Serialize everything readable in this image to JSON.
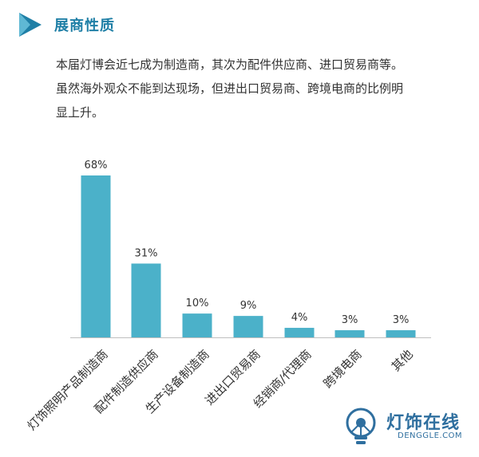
{
  "section": {
    "title": "展商性质",
    "intro_line1": "本届灯博会近七成为制造商，其次为配件供应商、进口贸易商等。",
    "intro_line2": "虽然海外观众不能到达现场，但进出口贸易商、跨境电商的比例明",
    "intro_line3": "显上升。"
  },
  "chart_data": {
    "type": "bar",
    "title": "",
    "xlabel": "",
    "ylabel": "",
    "ylim": [
      0,
      100
    ],
    "categories": [
      "灯饰照明产品制造商",
      "配件制造供应商",
      "生产设备制造商",
      "进出口贸易商",
      "经销商/代理商",
      "跨境电商",
      "其他"
    ],
    "values": [
      68,
      31,
      10,
      9,
      4,
      3,
      3
    ],
    "value_labels": [
      "68%",
      "31%",
      "10%",
      "9%",
      "4%",
      "3%",
      "3%"
    ],
    "bar_color": "#4bb1c9"
  },
  "logo": {
    "name_cn": "灯饰在线",
    "name_en": "DENGGLE.COM"
  },
  "colors": {
    "accent": "#1f7fa6",
    "logo": "#2f6f9f"
  }
}
